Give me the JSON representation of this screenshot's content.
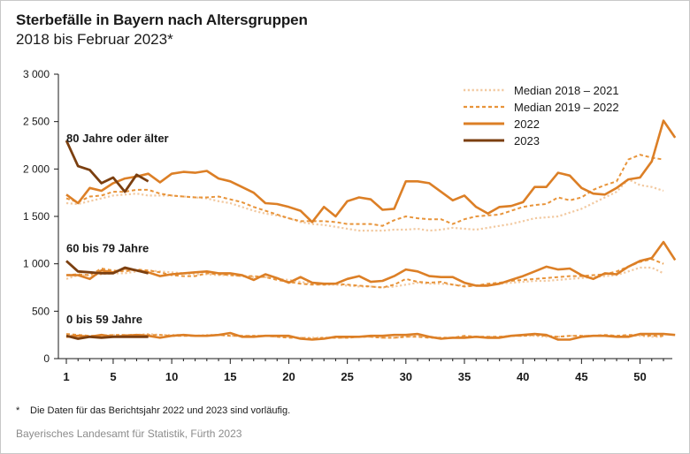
{
  "title": "Sterbefälle in Bayern nach Altersgruppen",
  "subtitle": "2018 bis Februar 2023*",
  "footnote": {
    "marker": "*",
    "text": "Die Daten für das Berichtsjahr 2022 und 2023 sind vorläufig."
  },
  "source": "Bayerisches Landesamt für Statistik, Fürth 2023",
  "colors": {
    "median_2018_2021": "#f2c9a0",
    "median_2019_2022": "#e8943a",
    "y2022": "#dc7f26",
    "y2023": "#7b3f10",
    "axis": "#1a1a1a"
  },
  "chart_data": {
    "type": "line",
    "x_label": "",
    "y_label": "",
    "xlim": [
      1,
      52
    ],
    "ylim": [
      0,
      3000
    ],
    "x_ticks": [
      1,
      5,
      10,
      15,
      20,
      25,
      30,
      35,
      40,
      45,
      50
    ],
    "y_ticks": [
      0,
      500,
      1000,
      1500,
      2000,
      2500,
      3000
    ],
    "y_tick_labels": [
      "0",
      "500",
      "1 000",
      "1 500",
      "2 000",
      "2 500",
      "3 000"
    ],
    "legend_position": "top-right",
    "grid": false,
    "legend": [
      {
        "key": "median_2018_2021",
        "label": "Median 2018 – 2021",
        "style": "dotted"
      },
      {
        "key": "median_2019_2022",
        "label": "Median 2019 – 2022",
        "style": "dashed"
      },
      {
        "key": "y2022",
        "label": "2022",
        "style": "solid"
      },
      {
        "key": "y2023",
        "label": "2023",
        "style": "solid"
      }
    ],
    "groups": [
      {
        "label": "80 Jahre oder älter",
        "series": {
          "median_2018_2021": [
            1640,
            1630,
            1660,
            1690,
            1720,
            1730,
            1740,
            1720,
            1720,
            1720,
            1710,
            1700,
            1690,
            1660,
            1640,
            1600,
            1560,
            1530,
            1510,
            1480,
            1440,
            1420,
            1410,
            1390,
            1370,
            1350,
            1350,
            1350,
            1360,
            1360,
            1370,
            1350,
            1360,
            1380,
            1370,
            1360,
            1380,
            1400,
            1420,
            1450,
            1480,
            1490,
            1500,
            1540,
            1580,
            1640,
            1700,
            1760,
            1890,
            1830,
            1810,
            1770
          ],
          "median_2019_2022": [
            1690,
            1650,
            1710,
            1720,
            1760,
            1760,
            1780,
            1780,
            1740,
            1720,
            1710,
            1700,
            1700,
            1710,
            1680,
            1650,
            1600,
            1560,
            1520,
            1480,
            1450,
            1450,
            1450,
            1440,
            1420,
            1420,
            1420,
            1400,
            1460,
            1500,
            1480,
            1470,
            1470,
            1420,
            1470,
            1500,
            1510,
            1520,
            1560,
            1600,
            1620,
            1630,
            1700,
            1670,
            1700,
            1780,
            1830,
            1870,
            2100,
            2150,
            2120,
            2100
          ],
          "y2022": [
            1730,
            1640,
            1800,
            1770,
            1850,
            1900,
            1920,
            1950,
            1860,
            1950,
            1970,
            1960,
            1980,
            1900,
            1870,
            1810,
            1750,
            1640,
            1630,
            1600,
            1560,
            1440,
            1600,
            1500,
            1660,
            1700,
            1680,
            1570,
            1580,
            1870,
            1870,
            1850,
            1760,
            1670,
            1720,
            1600,
            1530,
            1600,
            1610,
            1650,
            1810,
            1810,
            1960,
            1930,
            1800,
            1740,
            1730,
            1800,
            1890,
            1910,
            2080,
            2510,
            2330
          ],
          "y2023": [
            2300,
            2030,
            1990,
            1850,
            1910,
            1760,
            1940,
            1870
          ]
        }
      },
      {
        "label": "60 bis 79 Jahre",
        "series": {
          "median_2018_2021": [
            840,
            880,
            880,
            890,
            900,
            900,
            920,
            930,
            920,
            910,
            900,
            890,
            890,
            880,
            880,
            870,
            860,
            860,
            840,
            830,
            810,
            790,
            780,
            780,
            770,
            760,
            760,
            750,
            760,
            780,
            800,
            790,
            790,
            780,
            770,
            770,
            780,
            790,
            800,
            810,
            820,
            820,
            830,
            840,
            850,
            860,
            870,
            880,
            920,
            960,
            960,
            900
          ],
          "median_2019_2022": [
            880,
            890,
            880,
            950,
            930,
            920,
            940,
            930,
            910,
            880,
            870,
            870,
            900,
            890,
            880,
            870,
            870,
            860,
            830,
            810,
            790,
            780,
            780,
            790,
            780,
            770,
            760,
            750,
            780,
            840,
            810,
            800,
            810,
            780,
            760,
            770,
            790,
            800,
            820,
            830,
            840,
            850,
            860,
            870,
            870,
            880,
            890,
            920,
            970,
            1020,
            1050,
            1000
          ],
          "y2022": [
            880,
            880,
            840,
            930,
            910,
            950,
            930,
            910,
            870,
            890,
            900,
            910,
            920,
            900,
            900,
            880,
            830,
            890,
            850,
            800,
            860,
            800,
            790,
            790,
            840,
            870,
            810,
            820,
            870,
            940,
            920,
            870,
            860,
            860,
            800,
            770,
            770,
            790,
            830,
            870,
            920,
            970,
            940,
            950,
            880,
            840,
            900,
            890,
            970,
            1030,
            1060,
            1230,
            1040
          ],
          "y2023": [
            1030,
            920,
            910,
            900,
            900,
            960,
            930,
            900
          ]
        }
      },
      {
        "label": "0 bis 59 Jahre",
        "series": {
          "median_2018_2021": [
            250,
            240,
            240,
            240,
            250,
            250,
            250,
            260,
            250,
            250,
            250,
            240,
            250,
            250,
            240,
            240,
            240,
            240,
            230,
            230,
            220,
            220,
            220,
            220,
            220,
            230,
            230,
            220,
            220,
            230,
            240,
            230,
            220,
            220,
            230,
            230,
            230,
            230,
            240,
            240,
            240,
            230,
            230,
            240,
            240,
            240,
            240,
            240,
            240,
            240,
            230,
            230
          ],
          "median_2019_2022": [
            260,
            250,
            240,
            240,
            250,
            250,
            250,
            250,
            250,
            240,
            240,
            240,
            240,
            250,
            240,
            240,
            240,
            240,
            230,
            220,
            220,
            210,
            220,
            220,
            220,
            230,
            230,
            220,
            220,
            230,
            230,
            220,
            220,
            220,
            240,
            230,
            230,
            230,
            240,
            240,
            250,
            240,
            230,
            240,
            240,
            240,
            250,
            240,
            250,
            250,
            240,
            240
          ],
          "y2022": [
            230,
            240,
            230,
            250,
            230,
            240,
            250,
            240,
            220,
            240,
            250,
            240,
            240,
            250,
            270,
            230,
            230,
            240,
            240,
            240,
            210,
            200,
            210,
            230,
            230,
            230,
            240,
            240,
            250,
            250,
            260,
            230,
            210,
            220,
            220,
            230,
            220,
            220,
            240,
            250,
            260,
            250,
            200,
            200,
            230,
            240,
            240,
            230,
            230,
            260,
            260,
            260,
            250
          ],
          "y2023": [
            240,
            210,
            230,
            220,
            230,
            230,
            230,
            230
          ]
        }
      }
    ]
  }
}
